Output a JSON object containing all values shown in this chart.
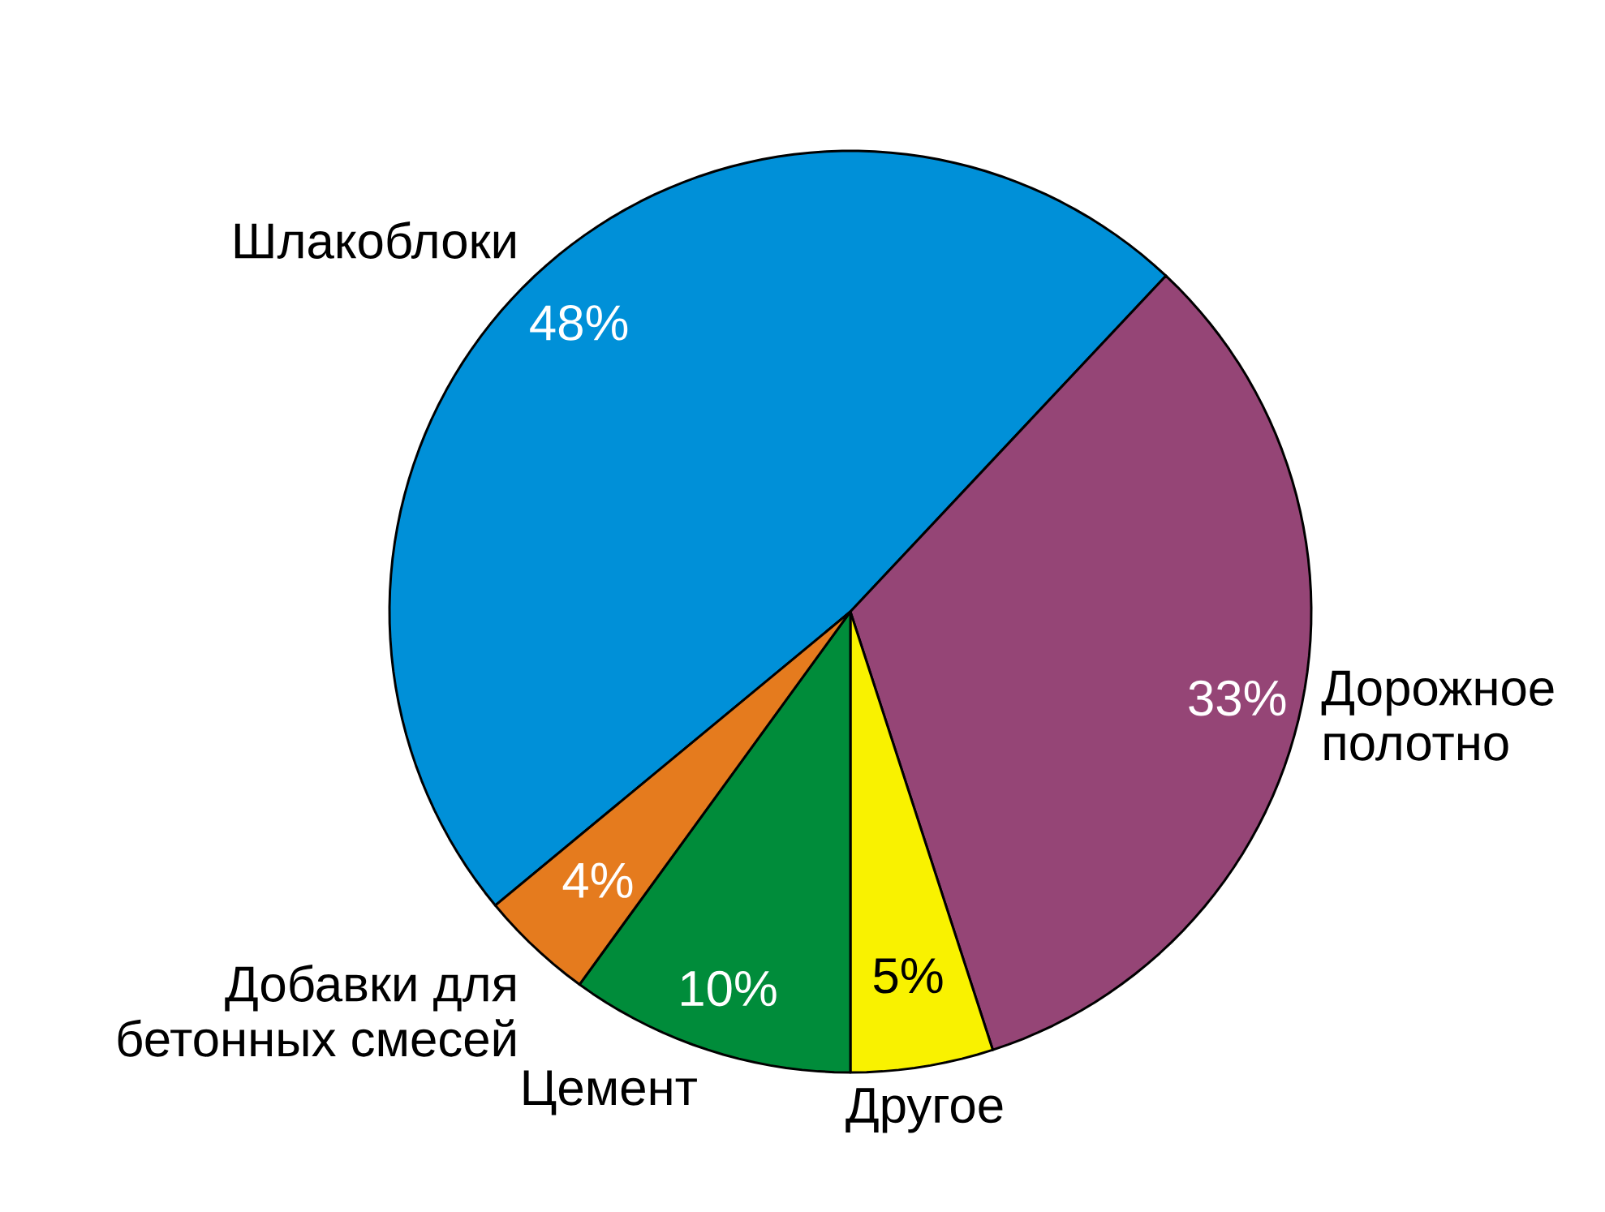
{
  "chart_data": {
    "type": "pie",
    "categories": [
      "Шлакоблоки",
      "Дорожное полотно",
      "Другое",
      "Цемент",
      "Добавки для бетонных смесей"
    ],
    "values": [
      48,
      33,
      5,
      10,
      4
    ],
    "colors": [
      "#0090d8",
      "#954576",
      "#f9f200",
      "#008c3a",
      "#e57b1e"
    ],
    "value_labels": [
      "48%",
      "33%",
      "5%",
      "10%",
      "4%"
    ]
  }
}
